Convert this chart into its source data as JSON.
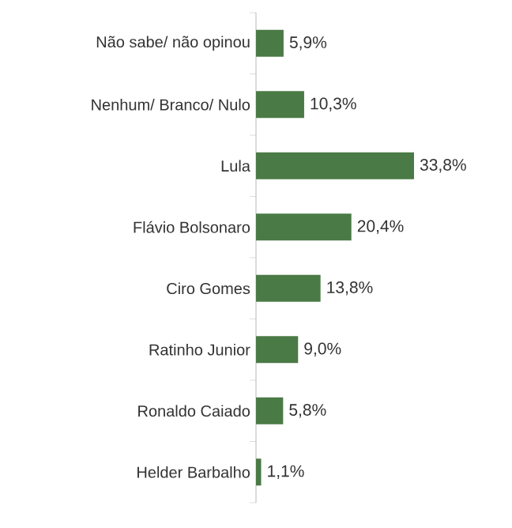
{
  "chart_data": {
    "type": "bar",
    "orientation": "horizontal",
    "color": "#4a7a45",
    "categories": [
      "Não sabe/ não opinou",
      "Nenhum/ Branco/ Nulo",
      "Lula",
      "Flávio Bolsonaro",
      "Ciro Gomes",
      "Ratinho Junior",
      "Ronaldo Caiado",
      "Helder Barbalho"
    ],
    "values": [
      5.9,
      10.3,
      33.8,
      20.4,
      13.8,
      9.0,
      5.8,
      1.1
    ],
    "value_labels": [
      "5,9%",
      "10,3%",
      "33,8%",
      "20,4%",
      "13,8%",
      "9,0%",
      "5,8%",
      "1,1%"
    ],
    "data_labels": false
  }
}
